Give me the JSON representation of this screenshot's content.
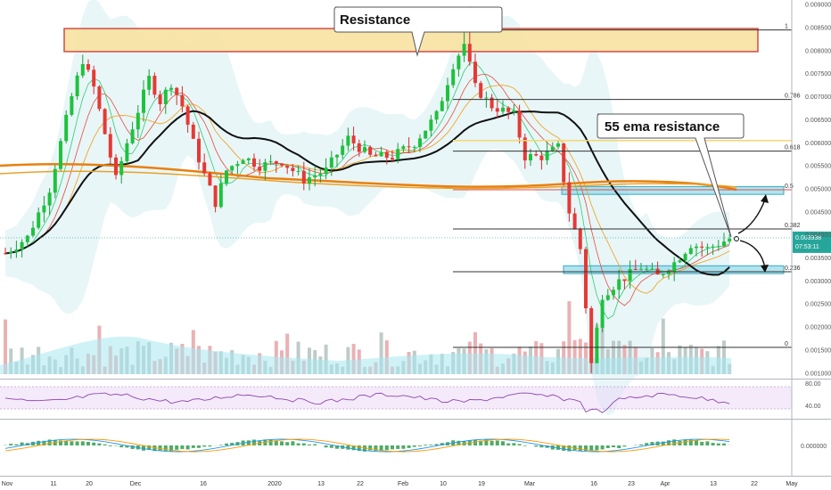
{
  "chart_data": {
    "type": "candlestick",
    "price_axis": {
      "range": [
        0.00088,
        0.0091
      ],
      "ticks": [
        "0.009000",
        "0.008500",
        "0.008000",
        "0.007500",
        "0.007000",
        "0.006500",
        "0.006000",
        "0.005500",
        "0.005000",
        "0.004500",
        "0.004000",
        "0.003500",
        "0.003000",
        "0.002500",
        "0.002000",
        "0.001500",
        "0.001000"
      ]
    },
    "time_axis": {
      "labels": [
        "Nov",
        "11",
        "20",
        "Dec",
        "16",
        "2020",
        "13",
        "22",
        "Feb",
        "10",
        "19",
        "Mar",
        "16",
        "23",
        "Apr",
        "13",
        "22",
        "May"
      ]
    },
    "current_price": "0.003938",
    "countdown": "07:53:11",
    "annotations": {
      "resistance": "Resistance",
      "ema_resistance": "55 ema resistance"
    },
    "resistance_zone": [
      0.00798,
      0.00848
    ],
    "boxes": [
      {
        "name": "upper-target-zone",
        "range": [
          0.00488,
          0.00505
        ]
      },
      {
        "name": "lower-support-zone",
        "range": [
          0.00316,
          0.00333
        ]
      }
    ],
    "fib_levels": [
      {
        "label": "1",
        "price": 0.00845
      },
      {
        "label": "0.786",
        "price": 0.00694
      },
      {
        "label": "0.618",
        "price": 0.00582
      },
      {
        "label": "0.5",
        "price": 0.00498
      },
      {
        "label": "0.382",
        "price": 0.00413
      },
      {
        "label": "0.236",
        "price": 0.0032
      },
      {
        "label": "0",
        "price": 0.00156
      }
    ],
    "rsi_axis": [
      "80.00",
      "40.00"
    ],
    "macd_axis": [
      "0.000000"
    ]
  }
}
